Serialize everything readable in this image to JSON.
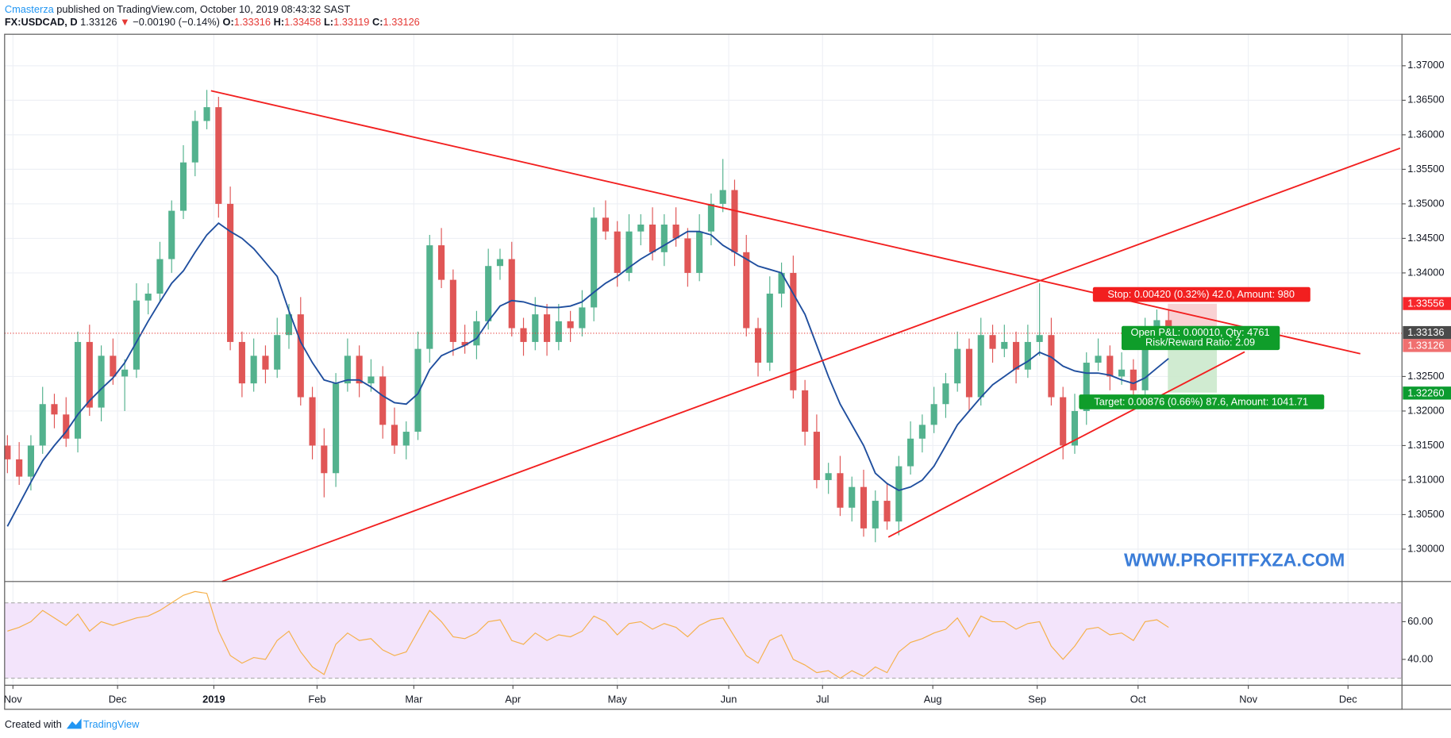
{
  "header": {
    "author": "Cmasterza",
    "published": "published on TradingView.com, October 10, 2019 08:43:32 SAST",
    "symbol": "FX:USDCAD, D",
    "last": "1.33126",
    "arrow": "▼",
    "change": "−0.00190 (−0.14%)",
    "ohlc": [
      {
        "label": "O:",
        "value": "1.33316"
      },
      {
        "label": "H:",
        "value": "1.33458"
      },
      {
        "label": "L:",
        "value": "1.33119"
      },
      {
        "label": "C:",
        "value": "1.33126"
      }
    ]
  },
  "position": {
    "stop": "Stop: 0.00420 (0.32%) 42.0, Amount: 980",
    "pnl": "Open P&L: 0.00010, Qty: 4761",
    "ratio": "Risk/Reward Ratio: 2.09",
    "target": "Target: 0.00876 (0.66%) 87.6, Amount: 1041.71"
  },
  "watermark": "WWW.PROFITFXZA.COM",
  "footer": {
    "created": "Created with",
    "brand": "TradingView"
  },
  "chart_data": {
    "type": "candlestick",
    "up_color": "#53b28e",
    "down_color": "#e05656",
    "xlim": [
      -0.24,
      118.9
    ],
    "xticks": [
      {
        "value": 0.47,
        "label": "Nov"
      },
      {
        "value": 9.39,
        "label": "Dec"
      },
      {
        "value": 17.6,
        "label": "2019",
        "bold": true
      },
      {
        "value": 26.4,
        "label": "Feb"
      },
      {
        "value": 34.65,
        "label": "Mar"
      },
      {
        "value": 43.1,
        "label": "Apr"
      },
      {
        "value": 52.0,
        "label": "May"
      },
      {
        "value": 61.5,
        "label": "Jun"
      },
      {
        "value": 69.5,
        "label": "Jul"
      },
      {
        "value": 78.9,
        "label": "Aug"
      },
      {
        "value": 87.8,
        "label": "Sep"
      },
      {
        "value": 96.4,
        "label": "Oct"
      },
      {
        "value": 105.8,
        "label": "Nov"
      },
      {
        "value": 114.3,
        "label": "Dec"
      }
    ],
    "ylim": [
      1.29531,
      1.37456
    ],
    "yticks": [
      {
        "value": 1.3,
        "label": "1.30000"
      },
      {
        "value": 1.305,
        "label": "1.30500"
      },
      {
        "value": 1.31,
        "label": "1.31000"
      },
      {
        "value": 1.315,
        "label": "1.31500"
      },
      {
        "value": 1.32,
        "label": "1.32000"
      },
      {
        "value": 1.325,
        "label": "1.32500"
      },
      {
        "value": 1.34,
        "label": "1.34000"
      },
      {
        "value": 1.345,
        "label": "1.34500"
      },
      {
        "value": 1.35,
        "label": "1.35000"
      },
      {
        "value": 1.355,
        "label": "1.35500"
      },
      {
        "value": 1.36,
        "label": "1.36000"
      },
      {
        "value": 1.365,
        "label": "1.36500"
      },
      {
        "value": 1.37,
        "label": "1.37000"
      }
    ],
    "grid": true,
    "ohlc": [
      [
        1.315,
        1.3165,
        1.311,
        1.313
      ],
      [
        1.313,
        1.3155,
        1.3093,
        1.3105
      ],
      [
        1.3105,
        1.3165,
        1.3085,
        1.315
      ],
      [
        1.315,
        1.3235,
        1.3138,
        1.321
      ],
      [
        1.321,
        1.3225,
        1.3175,
        1.3195
      ],
      [
        1.3195,
        1.322,
        1.3148,
        1.316
      ],
      [
        1.316,
        1.3315,
        1.314,
        1.33
      ],
      [
        1.33,
        1.3325,
        1.3193,
        1.3205
      ],
      [
        1.3205,
        1.3295,
        1.3185,
        1.328
      ],
      [
        1.328,
        1.3305,
        1.3238,
        1.325
      ],
      [
        1.325,
        1.3275,
        1.32,
        1.326
      ],
      [
        1.326,
        1.3385,
        1.3248,
        1.336
      ],
      [
        1.336,
        1.3385,
        1.334,
        1.337
      ],
      [
        1.337,
        1.3445,
        1.3358,
        1.342
      ],
      [
        1.342,
        1.3505,
        1.34,
        1.349
      ],
      [
        1.349,
        1.3585,
        1.3478,
        1.356
      ],
      [
        1.356,
        1.3635,
        1.354,
        1.362
      ],
      [
        1.362,
        1.3665,
        1.3608,
        1.364
      ],
      [
        1.364,
        1.3655,
        1.348,
        1.35
      ],
      [
        1.35,
        1.3525,
        1.3288,
        1.33
      ],
      [
        1.33,
        1.3315,
        1.322,
        1.324
      ],
      [
        1.324,
        1.3305,
        1.3228,
        1.328
      ],
      [
        1.328,
        1.3295,
        1.324,
        1.326
      ],
      [
        1.326,
        1.3335,
        1.3248,
        1.331
      ],
      [
        1.331,
        1.3355,
        1.329,
        1.334
      ],
      [
        1.334,
        1.3365,
        1.3208,
        1.322
      ],
      [
        1.322,
        1.3235,
        1.313,
        1.315
      ],
      [
        1.315,
        1.3175,
        1.3075,
        1.311
      ],
      [
        1.311,
        1.3255,
        1.309,
        1.324
      ],
      [
        1.324,
        1.3305,
        1.3228,
        1.328
      ],
      [
        1.328,
        1.3295,
        1.322,
        1.324
      ],
      [
        1.324,
        1.3275,
        1.3228,
        1.325
      ],
      [
        1.325,
        1.3265,
        1.316,
        1.318
      ],
      [
        1.318,
        1.3205,
        1.3138,
        1.315
      ],
      [
        1.315,
        1.3185,
        1.313,
        1.317
      ],
      [
        1.317,
        1.3315,
        1.3158,
        1.329
      ],
      [
        1.329,
        1.3455,
        1.327,
        1.344
      ],
      [
        1.344,
        1.3465,
        1.3378,
        1.339
      ],
      [
        1.339,
        1.3405,
        1.328,
        1.33
      ],
      [
        1.33,
        1.3325,
        1.3283,
        1.3295
      ],
      [
        1.3295,
        1.3345,
        1.3275,
        1.333
      ],
      [
        1.333,
        1.3435,
        1.3318,
        1.341
      ],
      [
        1.341,
        1.3435,
        1.339,
        1.342
      ],
      [
        1.342,
        1.3445,
        1.3308,
        1.332
      ],
      [
        1.332,
        1.3335,
        1.328,
        1.33
      ],
      [
        1.33,
        1.3365,
        1.3288,
        1.334
      ],
      [
        1.334,
        1.3355,
        1.328,
        1.33
      ],
      [
        1.33,
        1.3355,
        1.3288,
        1.333
      ],
      [
        1.333,
        1.3345,
        1.33,
        1.332
      ],
      [
        1.332,
        1.3375,
        1.3308,
        1.335
      ],
      [
        1.335,
        1.3495,
        1.333,
        1.348
      ],
      [
        1.348,
        1.3505,
        1.3448,
        1.346
      ],
      [
        1.346,
        1.3475,
        1.338,
        1.34
      ],
      [
        1.34,
        1.3485,
        1.3388,
        1.346
      ],
      [
        1.346,
        1.3485,
        1.344,
        1.347
      ],
      [
        1.347,
        1.3495,
        1.3418,
        1.343
      ],
      [
        1.343,
        1.3485,
        1.341,
        1.347
      ],
      [
        1.347,
        1.3495,
        1.3438,
        1.345
      ],
      [
        1.345,
        1.3465,
        1.338,
        1.34
      ],
      [
        1.34,
        1.3485,
        1.3388,
        1.346
      ],
      [
        1.346,
        1.3515,
        1.344,
        1.35
      ],
      [
        1.35,
        1.3565,
        1.3488,
        1.352
      ],
      [
        1.352,
        1.3535,
        1.341,
        1.343
      ],
      [
        1.343,
        1.3455,
        1.3308,
        1.332
      ],
      [
        1.332,
        1.3335,
        1.325,
        1.327
      ],
      [
        1.327,
        1.3395,
        1.3258,
        1.337
      ],
      [
        1.337,
        1.3415,
        1.335,
        1.34
      ],
      [
        1.34,
        1.3425,
        1.3218,
        1.323
      ],
      [
        1.323,
        1.3245,
        1.315,
        1.317
      ],
      [
        1.317,
        1.3195,
        1.3088,
        1.31
      ],
      [
        1.31,
        1.3125,
        1.308,
        1.311
      ],
      [
        1.311,
        1.3135,
        1.3048,
        1.306
      ],
      [
        1.306,
        1.3105,
        1.304,
        1.309
      ],
      [
        1.309,
        1.3115,
        1.3018,
        1.303
      ],
      [
        1.303,
        1.3085,
        1.301,
        1.307
      ],
      [
        1.307,
        1.3095,
        1.3028,
        1.304
      ],
      [
        1.304,
        1.3135,
        1.302,
        1.312
      ],
      [
        1.312,
        1.3185,
        1.3108,
        1.316
      ],
      [
        1.316,
        1.3195,
        1.314,
        1.318
      ],
      [
        1.318,
        1.3235,
        1.3168,
        1.321
      ],
      [
        1.321,
        1.3255,
        1.319,
        1.324
      ],
      [
        1.324,
        1.3315,
        1.3228,
        1.329
      ],
      [
        1.329,
        1.3305,
        1.32,
        1.322
      ],
      [
        1.322,
        1.3335,
        1.3208,
        1.331
      ],
      [
        1.331,
        1.3325,
        1.327,
        1.329
      ],
      [
        1.329,
        1.3325,
        1.3278,
        1.33
      ],
      [
        1.33,
        1.3315,
        1.324,
        1.326
      ],
      [
        1.326,
        1.3325,
        1.3248,
        1.33
      ],
      [
        1.33,
        1.3385,
        1.328,
        1.331
      ],
      [
        1.331,
        1.3335,
        1.3208,
        1.322
      ],
      [
        1.322,
        1.3235,
        1.313,
        1.315
      ],
      [
        1.315,
        1.3225,
        1.3138,
        1.32
      ],
      [
        1.32,
        1.3285,
        1.318,
        1.327
      ],
      [
        1.327,
        1.3305,
        1.3258,
        1.328
      ],
      [
        1.328,
        1.3295,
        1.323,
        1.325
      ],
      [
        1.325,
        1.3285,
        1.3238,
        1.326
      ],
      [
        1.326,
        1.3275,
        1.321,
        1.323
      ],
      [
        1.323,
        1.3335,
        1.3218,
        1.331
      ],
      [
        1.331,
        1.3347,
        1.329,
        1.33316
      ],
      [
        1.33316,
        1.33458,
        1.33119,
        1.33126
      ]
    ],
    "ma": {
      "color": "#1f4e9e",
      "values": [
        1.3033,
        1.3065,
        1.3097,
        1.3128,
        1.315,
        1.317,
        1.3195,
        1.3215,
        1.3232,
        1.3248,
        1.327,
        1.33,
        1.333,
        1.3358,
        1.3385,
        1.3403,
        1.343,
        1.3455,
        1.3472,
        1.346,
        1.345,
        1.3435,
        1.3415,
        1.3395,
        1.3345,
        1.33,
        1.327,
        1.3245,
        1.324,
        1.3245,
        1.3245,
        1.3235,
        1.3222,
        1.3212,
        1.321,
        1.3225,
        1.326,
        1.328,
        1.3288,
        1.3295,
        1.3305,
        1.333,
        1.3352,
        1.336,
        1.3358,
        1.3353,
        1.335,
        1.335,
        1.3352,
        1.3358,
        1.3372,
        1.3385,
        1.3395,
        1.3408,
        1.342,
        1.343,
        1.344,
        1.345,
        1.346,
        1.346,
        1.3455,
        1.344,
        1.343,
        1.342,
        1.341,
        1.3405,
        1.34,
        1.337,
        1.334,
        1.3295,
        1.325,
        1.321,
        1.318,
        1.315,
        1.311,
        1.3095,
        1.3085,
        1.309,
        1.31,
        1.312,
        1.315,
        1.318,
        1.32,
        1.322,
        1.3238,
        1.325,
        1.3262,
        1.3272,
        1.3285,
        1.3278,
        1.3265,
        1.3258,
        1.3255,
        1.3255,
        1.3252,
        1.3245,
        1.324,
        1.3248,
        1.3262,
        1.3276
      ]
    },
    "price_labels": [
      {
        "value": 1.33556,
        "label": "1.33556",
        "color": "#f7262b"
      },
      {
        "value": 1.33136,
        "label": "1.33136",
        "color": "#4a4a4a"
      },
      {
        "value": 1.33126,
        "label": "1.33126",
        "color": "#f07070"
      },
      {
        "value": 1.3226,
        "label": "1.32260",
        "color": "#0b9b2f"
      }
    ],
    "rsi": {
      "color": "#f5b04a",
      "band_color": "#f3e4fb",
      "band": [
        30,
        70
      ],
      "ylim": [
        26.3,
        81.3
      ],
      "yticks": [
        {
          "value": 40,
          "label": "40.00"
        },
        {
          "value": 60,
          "label": "60.00"
        }
      ],
      "values": [
        55,
        57,
        60,
        66,
        62,
        58,
        64,
        55,
        60,
        58,
        60,
        62,
        63,
        66,
        70,
        74,
        76,
        75,
        55,
        42,
        38,
        41,
        40,
        50,
        55,
        44,
        36,
        32,
        48,
        54,
        50,
        51,
        45,
        42,
        44,
        55,
        66,
        60,
        52,
        51,
        54,
        60,
        61,
        50,
        48,
        54,
        50,
        53,
        52,
        55,
        63,
        60,
        53,
        59,
        60,
        56,
        59,
        57,
        52,
        58,
        61,
        62,
        52,
        42,
        38,
        50,
        53,
        40,
        37,
        33,
        34,
        30,
        34,
        31,
        36,
        33,
        44,
        49,
        51,
        54,
        56,
        62,
        52,
        63,
        60,
        60,
        56,
        59,
        60,
        47,
        40,
        47,
        56,
        57,
        53,
        54,
        50,
        60,
        61,
        57
      ]
    }
  }
}
